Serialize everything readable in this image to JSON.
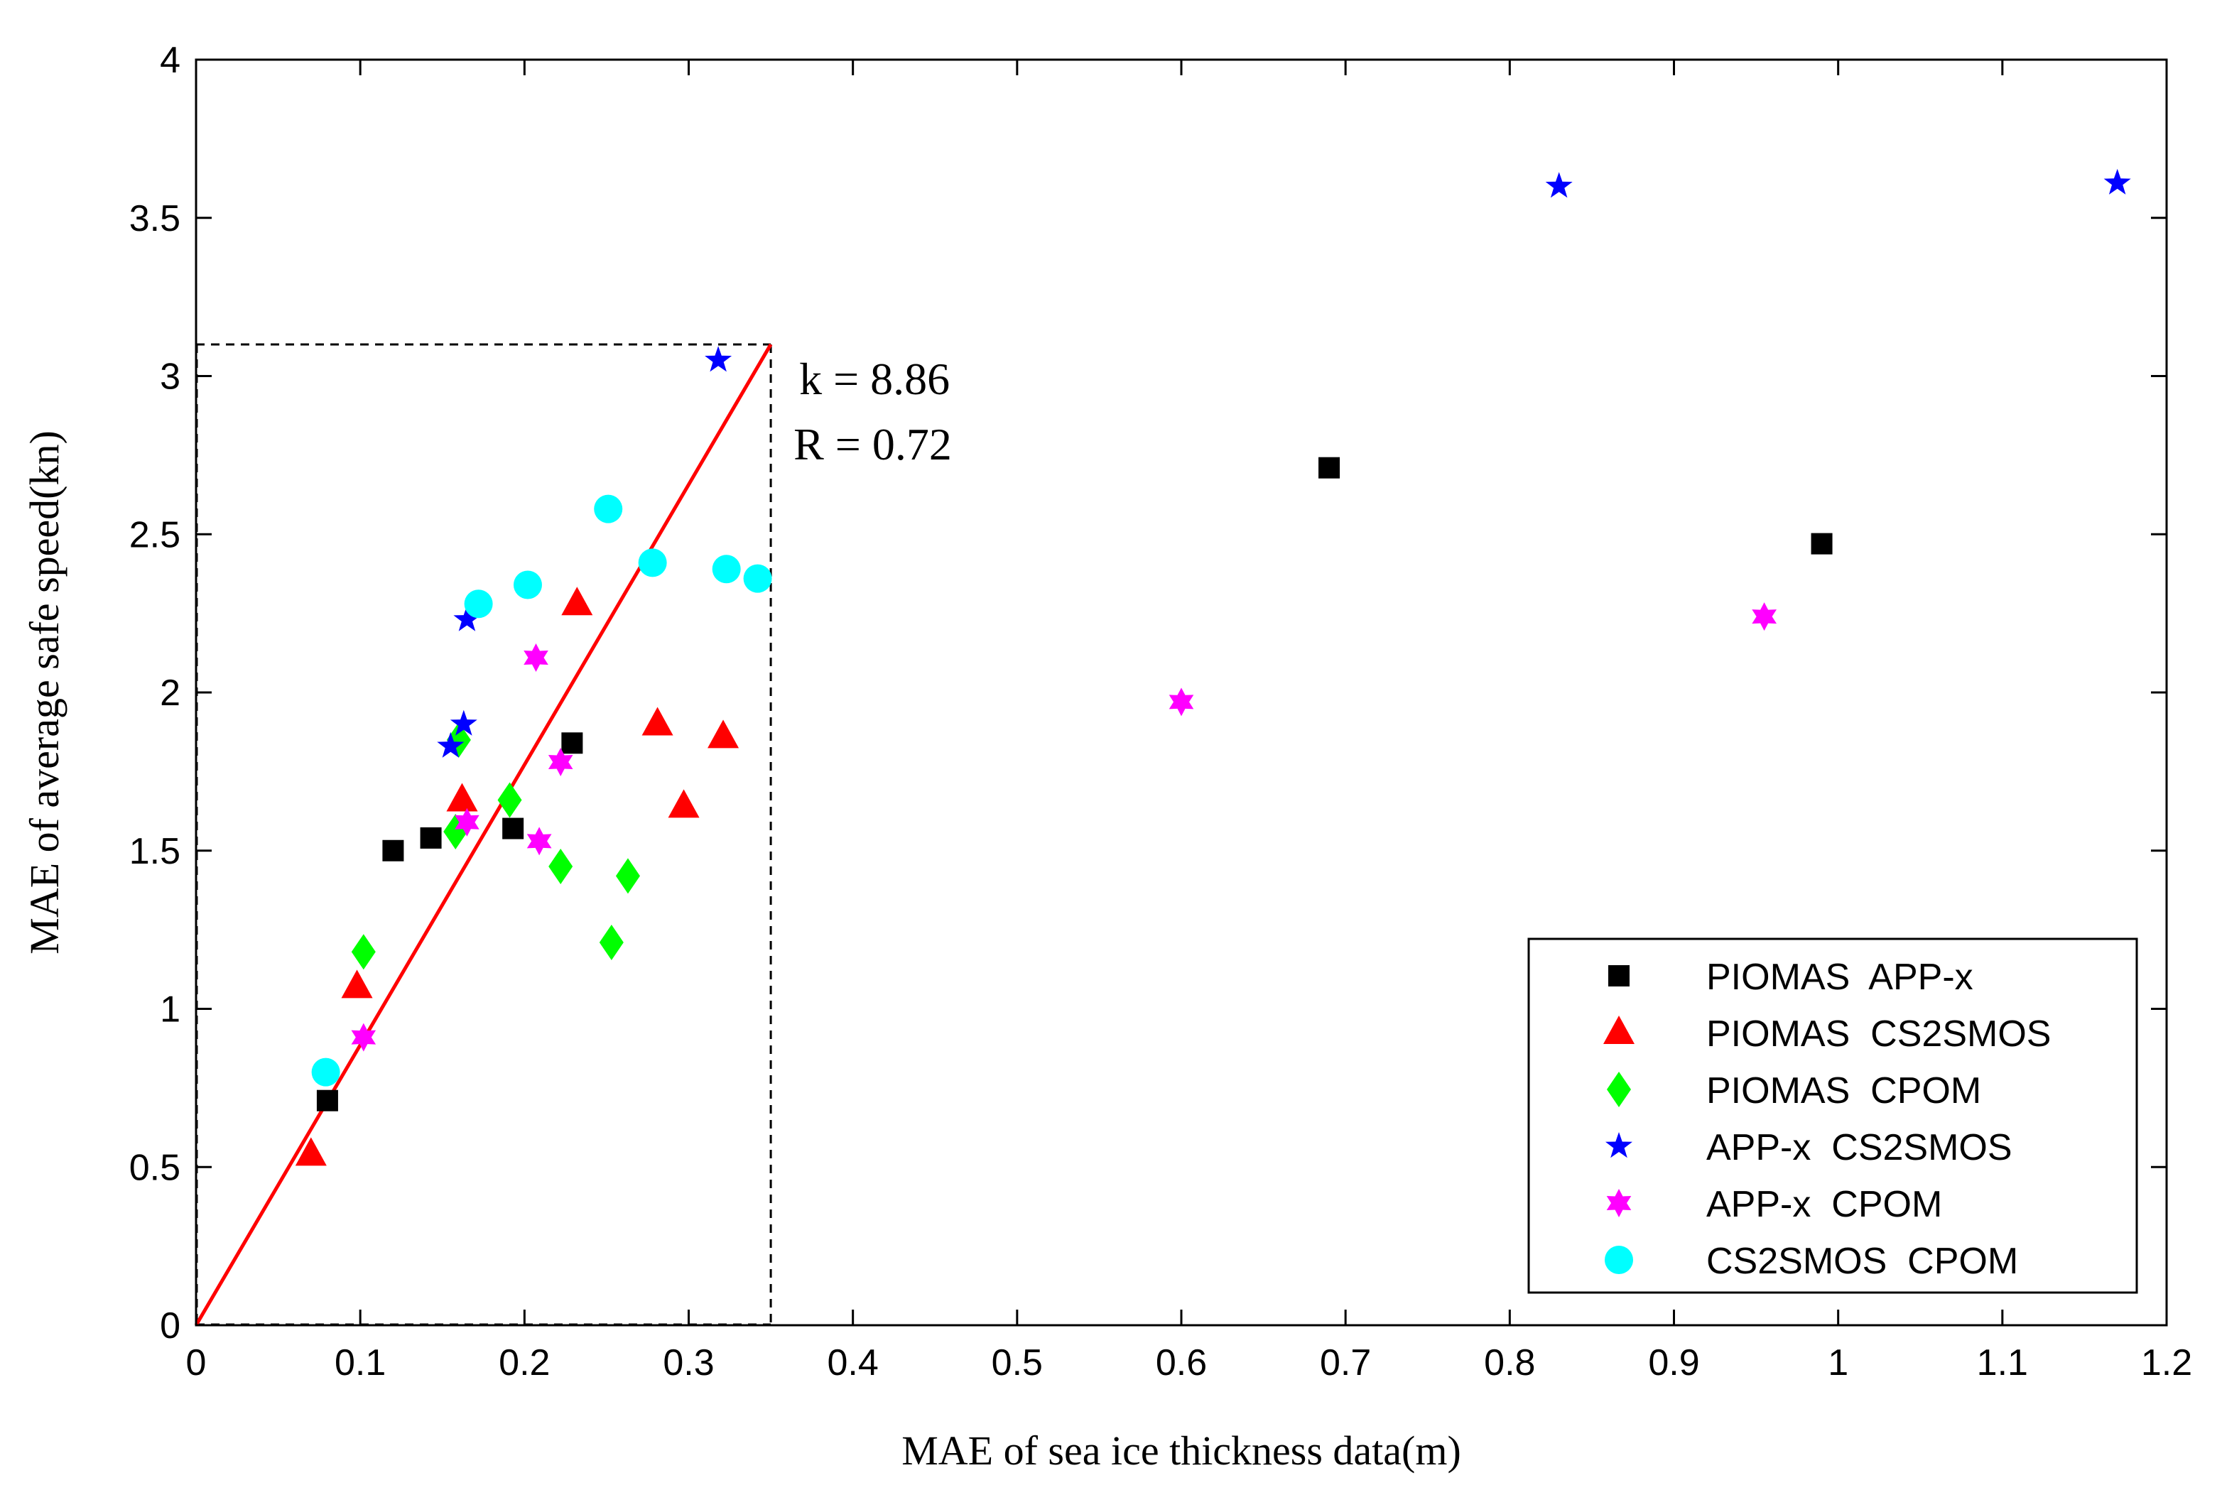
{
  "chart_data": {
    "type": "scatter",
    "title": "",
    "xlabel": "MAE of sea ice thickness data(m)",
    "ylabel": "MAE of average safe speed(kn)",
    "xlim": [
      0,
      1.2
    ],
    "ylim": [
      0,
      4
    ],
    "xticks": [
      0,
      0.1,
      0.2,
      0.3,
      0.4,
      0.5,
      0.6,
      0.7,
      0.8,
      0.9,
      1,
      1.1,
      1.2
    ],
    "xtick_labels": [
      "0",
      "0.1",
      "0.2",
      "0.3",
      "0.4",
      "0.5",
      "0.6",
      "0.7",
      "0.8",
      "0.9",
      "1",
      "1.1",
      "1.2"
    ],
    "yticks": [
      0,
      0.5,
      1,
      1.5,
      2,
      2.5,
      3,
      3.5,
      4
    ],
    "ytick_labels": [
      "0",
      "0.5",
      "1",
      "1.5",
      "2",
      "2.5",
      "3",
      "3.5",
      "4"
    ],
    "grid": false,
    "legend_position": "bottom-right",
    "series": [
      {
        "name": "PIOMAS  APP-x",
        "marker": "square",
        "color": "#000000",
        "points": [
          [
            0.08,
            0.71
          ],
          [
            0.12,
            1.5
          ],
          [
            0.143,
            1.54
          ],
          [
            0.193,
            1.57
          ],
          [
            0.229,
            1.84
          ],
          [
            0.69,
            2.71
          ],
          [
            0.99,
            2.47
          ]
        ]
      },
      {
        "name": "PIOMAS  CS2SMOS",
        "marker": "triangle",
        "color": "#ff0000",
        "points": [
          [
            0.07,
            0.54
          ],
          [
            0.098,
            1.07
          ],
          [
            0.162,
            1.66
          ],
          [
            0.232,
            2.28
          ],
          [
            0.281,
            1.9
          ],
          [
            0.297,
            1.64
          ],
          [
            0.321,
            1.86
          ]
        ]
      },
      {
        "name": "PIOMAS  CPOM",
        "marker": "diamond",
        "color": "#00ff00",
        "points": [
          [
            0.102,
            1.18
          ],
          [
            0.158,
            1.56
          ],
          [
            0.16,
            1.85
          ],
          [
            0.191,
            1.66
          ],
          [
            0.222,
            1.45
          ],
          [
            0.253,
            1.21
          ],
          [
            0.263,
            1.42
          ]
        ]
      },
      {
        "name": "APP-x  CS2SMOS",
        "marker": "star5",
        "color": "#0000ff",
        "points": [
          [
            0.155,
            1.83
          ],
          [
            0.163,
            1.9
          ],
          [
            0.165,
            2.23
          ],
          [
            0.318,
            3.05
          ],
          [
            0.83,
            3.6
          ],
          [
            1.17,
            3.61
          ]
        ]
      },
      {
        "name": "APP-x  CPOM",
        "marker": "hexagram",
        "color": "#ff00ff",
        "points": [
          [
            0.102,
            0.91
          ],
          [
            0.165,
            1.59
          ],
          [
            0.207,
            2.11
          ],
          [
            0.209,
            1.53
          ],
          [
            0.222,
            1.78
          ],
          [
            0.6,
            1.97
          ],
          [
            0.955,
            2.24
          ]
        ]
      },
      {
        "name": "CS2SMOS  CPOM",
        "marker": "circle",
        "color": "#00ffff",
        "points": [
          [
            0.079,
            0.8
          ],
          [
            0.172,
            2.28
          ],
          [
            0.202,
            2.34
          ],
          [
            0.251,
            2.58
          ],
          [
            0.278,
            2.41
          ],
          [
            0.323,
            2.39
          ],
          [
            0.342,
            2.36
          ]
        ]
      }
    ],
    "fit_line": {
      "color": "#ff0000",
      "from": [
        0,
        0
      ],
      "to": [
        0.35,
        3.1
      ]
    },
    "reference_lines": {
      "x": 0.35,
      "y": 3.1,
      "style": "dashed"
    },
    "annotations": [
      "k = 8.86",
      "R = 0.72"
    ]
  }
}
